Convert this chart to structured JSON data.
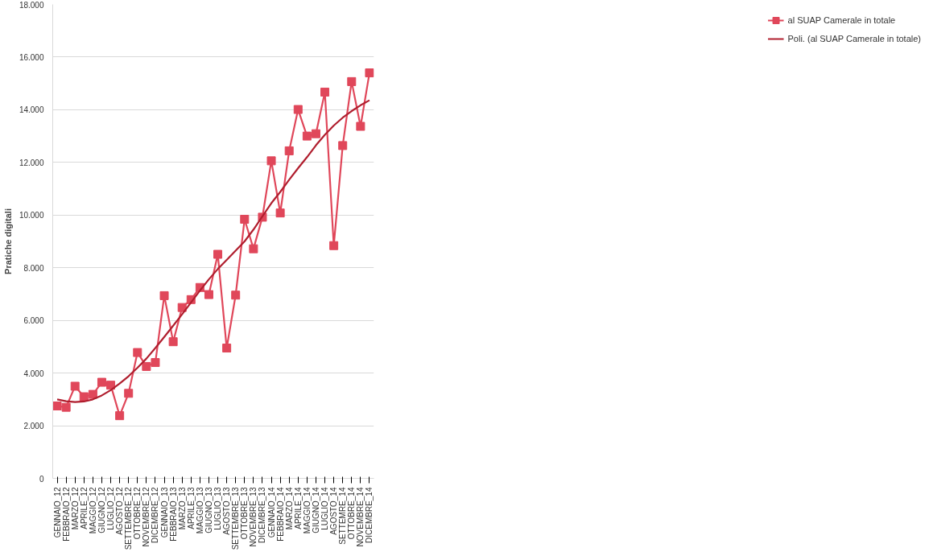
{
  "chart_data": {
    "type": "line",
    "ylabel": "Pratiche digitali",
    "categories": [
      "GENNAIO_12",
      "FEBBRAIO_12",
      "MARZO_12",
      "APRILE_12",
      "MAGGIO_12",
      "GIUGNO_12",
      "LUGLIO_12",
      "AGOSTO_12",
      "SETTEMBRE_12",
      "OTTOBRE_12",
      "NOVEMBRE_12",
      "DICEMBRE_12",
      "GENNAIO_13",
      "FEBBRAIO_13",
      "MARZO_13",
      "APRILE_13",
      "MAGGIO_13",
      "GIUGNO_13",
      "LUGLIO_13",
      "AGOSTO_13",
      "SETTEMBRE_13",
      "OTTOBRE_13",
      "NOVEMBRE_13",
      "DICEMBRE_13",
      "GENNAIO_14",
      "FEBBRAIO_14",
      "MARZO_14",
      "APRILE_14",
      "MAGGIO_14",
      "GIUGNO_14",
      "LUGLIO_14",
      "AGOSTO_14",
      "SETTEMRE_14",
      "OTTOBRE_14",
      "NOVEMBRE_14",
      "DICEMBRE_14"
    ],
    "series": [
      {
        "name": "al SUAP Camerale in totale",
        "color": "#e0475a",
        "values": [
          2750,
          2700,
          3500,
          3100,
          3190,
          3650,
          3540,
          2380,
          3230,
          4780,
          4250,
          4400,
          6940,
          5190,
          6490,
          6790,
          7250,
          6980,
          8510,
          4950,
          6960,
          9840,
          8720,
          9920,
          12060,
          10080,
          12440,
          14010,
          13000,
          13090,
          14670,
          8840,
          12640,
          15070,
          13370,
          15400
        ]
      },
      {
        "name": "Poli. (al SUAP Camerale in totale)",
        "color": "#b01e2e",
        "marker": "none",
        "values": [
          3000,
          2930,
          2900,
          2920,
          3000,
          3150,
          3350,
          3600,
          3880,
          4200,
          4550,
          4950,
          5370,
          5800,
          6230,
          6680,
          7130,
          7560,
          7950,
          8300,
          8650,
          9000,
          9450,
          9950,
          10450,
          10880,
          11340,
          11780,
          12200,
          12650,
          13050,
          13400,
          13700,
          13950,
          14170,
          14360
        ]
      }
    ],
    "ylim": [
      0,
      18000
    ],
    "yticks": [
      {
        "value": 0,
        "label": "0"
      },
      {
        "value": 2000,
        "label": "2.000"
      },
      {
        "value": 4000,
        "label": "4.000"
      },
      {
        "value": 6000,
        "label": "6.000"
      },
      {
        "value": 8000,
        "label": "8.000"
      },
      {
        "value": 10000,
        "label": "10.000"
      },
      {
        "value": 12000,
        "label": "12.000"
      },
      {
        "value": 14000,
        "label": "14.000"
      },
      {
        "value": 16000,
        "label": "16.000"
      },
      {
        "value": 18000,
        "label": "18.000"
      }
    ],
    "grid": "y",
    "legend": "right",
    "marker": "square",
    "line_style": "solid"
  }
}
